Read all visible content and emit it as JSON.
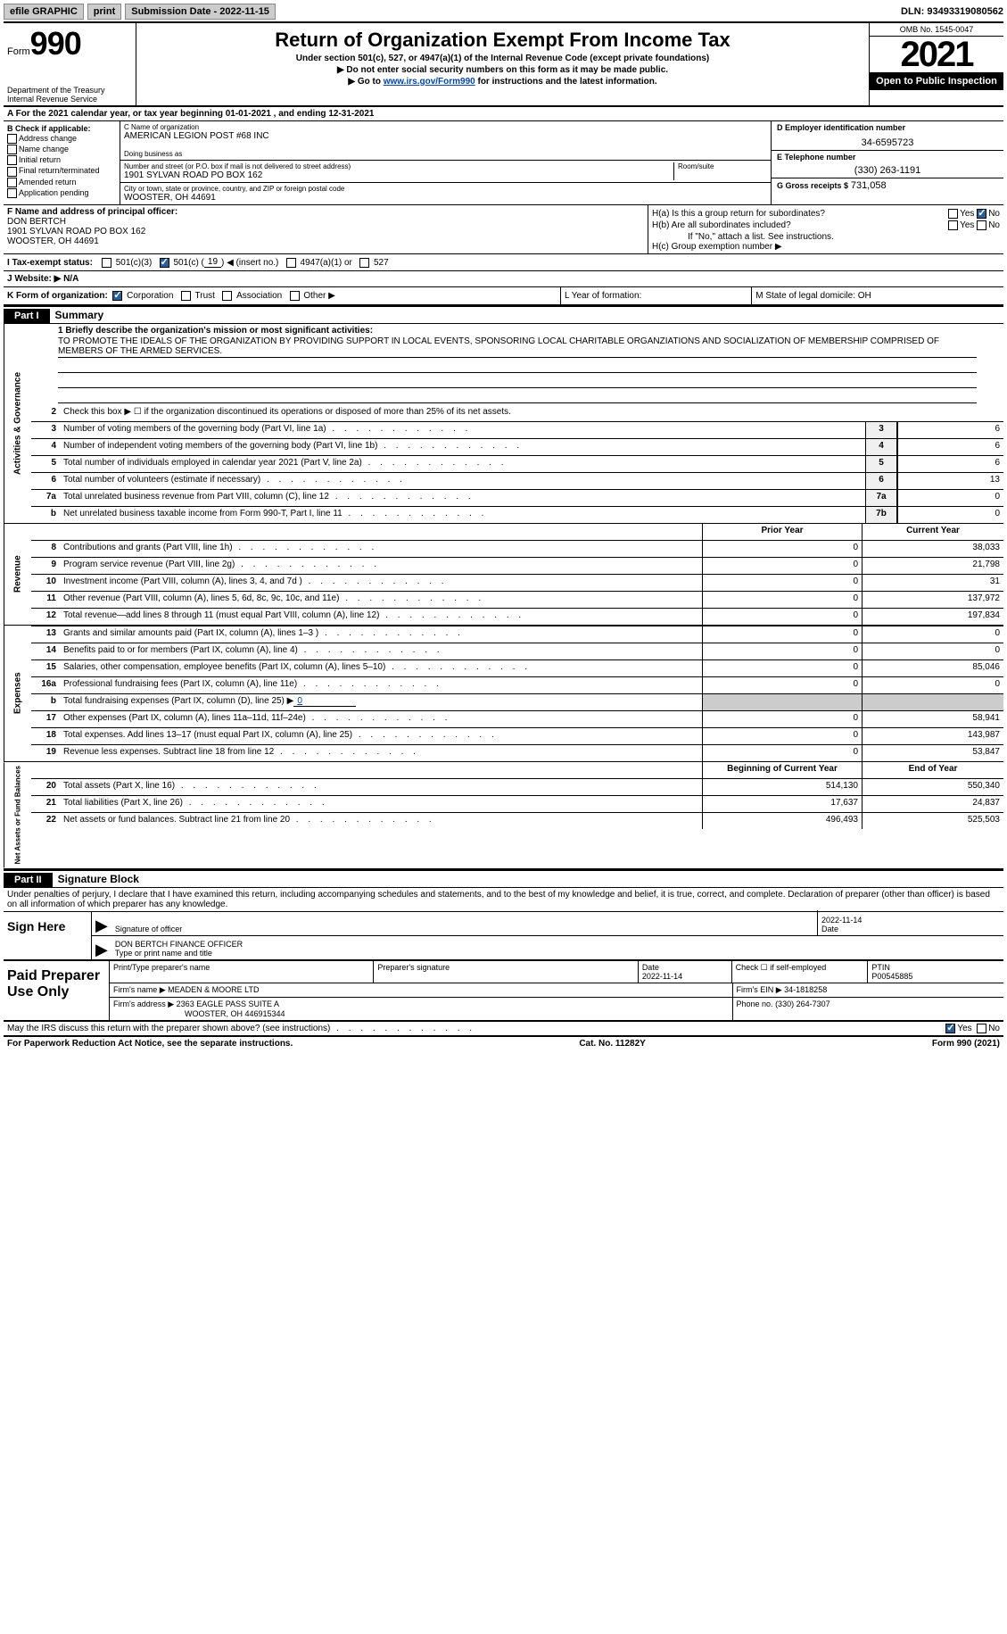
{
  "topbar": {
    "efile": "efile GRAPHIC",
    "print": "print",
    "submission": "Submission Date - 2022-11-15",
    "dln": "DLN: 93493319080562"
  },
  "header": {
    "form_word": "Form",
    "form_num": "990",
    "dept": "Department of the Treasury Internal Revenue Service",
    "title": "Return of Organization Exempt From Income Tax",
    "sub1": "Under section 501(c), 527, or 4947(a)(1) of the Internal Revenue Code (except private foundations)",
    "sub2": "▶ Do not enter social security numbers on this form as it may be made public.",
    "sub3_pre": "▶ Go to ",
    "sub3_link": "www.irs.gov/Form990",
    "sub3_post": " for instructions and the latest information.",
    "omb": "OMB No. 1545-0047",
    "year": "2021",
    "open": "Open to Public Inspection"
  },
  "rowA": "A   For the 2021 calendar year, or tax year beginning 01-01-2021    , and ending 12-31-2021",
  "colB": {
    "hdr": "B Check if applicable:",
    "items": [
      "Address change",
      "Name change",
      "Initial return",
      "Final return/terminated",
      "Amended return",
      "Application pending"
    ]
  },
  "colC": {
    "name_lbl": "C Name of organization",
    "name": "AMERICAN LEGION POST #68 INC",
    "dba_lbl": "Doing business as",
    "dba": "",
    "addr_lbl": "Number and street (or P.O. box if mail is not delivered to street address)",
    "room_lbl": "Room/suite",
    "addr": "1901 SYLVAN ROAD PO BOX 162",
    "city_lbl": "City or town, state or province, country, and ZIP or foreign postal code",
    "city": "WOOSTER, OH  44691"
  },
  "colD": {
    "ein_lbl": "D Employer identification number",
    "ein": "34-6595723",
    "tel_lbl": "E Telephone number",
    "tel": "(330) 263-1191",
    "gross_lbl": "G Gross receipts $",
    "gross": "731,058"
  },
  "colF": {
    "lbl": "F  Name and address of principal officer:",
    "name": "DON BERTCH",
    "addr1": "1901 SYLVAN ROAD PO BOX 162",
    "addr2": "WOOSTER, OH  44691"
  },
  "colH": {
    "a": "H(a)  Is this a group return for subordinates?",
    "b": "H(b)  Are all subordinates included?",
    "note": "If \"No,\" attach a list. See instructions.",
    "c": "H(c)  Group exemption number ▶"
  },
  "rowI": {
    "lbl": "I    Tax-exempt status:",
    "o1": "501(c)(3)",
    "o2a": "501(c) (",
    "o2b": "19",
    "o2c": ") ◀ (insert no.)",
    "o3": "4947(a)(1) or",
    "o4": "527"
  },
  "rowJ": "J    Website: ▶   N/A",
  "rowK": {
    "lbl": "K Form of organization:",
    "o1": "Corporation",
    "o2": "Trust",
    "o3": "Association",
    "o4": "Other ▶"
  },
  "rowL": {
    "year": "L Year of formation:",
    "state": "M State of legal domicile: OH"
  },
  "part1": {
    "tag": "Part I",
    "title": "Summary"
  },
  "q1": {
    "lbl": "1   Briefly describe the organization's mission or most significant activities:",
    "txt": "TO PROMOTE THE IDEALS OF THE ORGANIZATION BY PROVIDING SUPPORT IN LOCAL EVENTS, SPONSORING LOCAL CHARITABLE ORGANZIATIONS AND SOCIALIZATION OF MEMBERSHIP COMPRISED OF MEMBERS OF THE ARMED SERVICES."
  },
  "q2": "Check this box ▶ ☐  if the organization discontinued its operations or disposed of more than 25% of its net assets.",
  "lines_gov": [
    {
      "n": "3",
      "d": "Number of voting members of the governing body (Part VI, line 1a)",
      "b": "3",
      "v": "6"
    },
    {
      "n": "4",
      "d": "Number of independent voting members of the governing body (Part VI, line 1b)",
      "b": "4",
      "v": "6"
    },
    {
      "n": "5",
      "d": "Total number of individuals employed in calendar year 2021 (Part V, line 2a)",
      "b": "5",
      "v": "6"
    },
    {
      "n": "6",
      "d": "Total number of volunteers (estimate if necessary)",
      "b": "6",
      "v": "13"
    },
    {
      "n": "7a",
      "d": "Total unrelated business revenue from Part VIII, column (C), line 12",
      "b": "7a",
      "v": "0"
    },
    {
      "n": "b",
      "d": "Net unrelated business taxable income from Form 990-T, Part I, line 11",
      "b": "7b",
      "v": "0"
    }
  ],
  "hdr_pc": {
    "prior": "Prior Year",
    "curr": "Current Year"
  },
  "lines_rev": [
    {
      "n": "8",
      "d": "Contributions and grants (Part VIII, line 1h)",
      "p": "0",
      "c": "38,033"
    },
    {
      "n": "9",
      "d": "Program service revenue (Part VIII, line 2g)",
      "p": "0",
      "c": "21,798"
    },
    {
      "n": "10",
      "d": "Investment income (Part VIII, column (A), lines 3, 4, and 7d )",
      "p": "0",
      "c": "31"
    },
    {
      "n": "11",
      "d": "Other revenue (Part VIII, column (A), lines 5, 6d, 8c, 9c, 10c, and 11e)",
      "p": "0",
      "c": "137,972"
    },
    {
      "n": "12",
      "d": "Total revenue—add lines 8 through 11 (must equal Part VIII, column (A), line 12)",
      "p": "0",
      "c": "197,834"
    }
  ],
  "lines_exp": [
    {
      "n": "13",
      "d": "Grants and similar amounts paid (Part IX, column (A), lines 1–3 )",
      "p": "0",
      "c": "0"
    },
    {
      "n": "14",
      "d": "Benefits paid to or for members (Part IX, column (A), line 4)",
      "p": "0",
      "c": "0"
    },
    {
      "n": "15",
      "d": "Salaries, other compensation, employee benefits (Part IX, column (A), lines 5–10)",
      "p": "0",
      "c": "85,046"
    },
    {
      "n": "16a",
      "d": "Professional fundraising fees (Part IX, column (A), line 11e)",
      "p": "0",
      "c": "0"
    }
  ],
  "line16b": {
    "n": "b",
    "d": "Total fundraising expenses (Part IX, column (D), line 25) ▶",
    "v": "0"
  },
  "lines_exp2": [
    {
      "n": "17",
      "d": "Other expenses (Part IX, column (A), lines 11a–11d, 11f–24e)",
      "p": "0",
      "c": "58,941"
    },
    {
      "n": "18",
      "d": "Total expenses. Add lines 13–17 (must equal Part IX, column (A), line 25)",
      "p": "0",
      "c": "143,987"
    },
    {
      "n": "19",
      "d": "Revenue less expenses. Subtract line 18 from line 12",
      "p": "0",
      "c": "53,847"
    }
  ],
  "hdr_na": {
    "prior": "Beginning of Current Year",
    "curr": "End of Year"
  },
  "lines_na": [
    {
      "n": "20",
      "d": "Total assets (Part X, line 16)",
      "p": "514,130",
      "c": "550,340"
    },
    {
      "n": "21",
      "d": "Total liabilities (Part X, line 26)",
      "p": "17,637",
      "c": "24,837"
    },
    {
      "n": "22",
      "d": "Net assets or fund balances. Subtract line 21 from line 20",
      "p": "496,493",
      "c": "525,503"
    }
  ],
  "side": {
    "gov": "Activities & Governance",
    "rev": "Revenue",
    "exp": "Expenses",
    "na": "Net Assets or Fund Balances"
  },
  "part2": {
    "tag": "Part II",
    "title": "Signature Block"
  },
  "penalties": "Under penalties of perjury, I declare that I have examined this return, including accompanying schedules and statements, and to the best of my knowledge and belief, it is true, correct, and complete. Declaration of preparer (other than officer) is based on all information of which preparer has any knowledge.",
  "sign": {
    "here": "Sign Here",
    "sig_lbl": "Signature of officer",
    "date": "2022-11-14",
    "date_lbl": "Date",
    "name": "DON BERTCH  FINANCE OFFICER",
    "name_lbl": "Type or print name and title"
  },
  "prep": {
    "left": "Paid Preparer Use Only",
    "r1": {
      "a": "Print/Type preparer's name",
      "b": "Preparer's signature",
      "c": "Date",
      "cv": "2022-11-14",
      "d": "Check ☐ if self-employed",
      "e": "PTIN",
      "ev": "P00545885"
    },
    "r2": {
      "a": "Firm's name     ▶",
      "av": "MEADEN & MOORE LTD",
      "b": "Firm's EIN ▶",
      "bv": "34-1818258"
    },
    "r3": {
      "a": "Firm's address ▶",
      "av1": "2363 EAGLE PASS SUITE A",
      "av2": "WOOSTER, OH  446915344",
      "b": "Phone no.",
      "bv": "(330) 264-7307"
    }
  },
  "discuss": "May the IRS discuss this return with the preparer shown above? (see instructions)",
  "footer": {
    "left": "For Paperwork Reduction Act Notice, see the separate instructions.",
    "mid": "Cat. No. 11282Y",
    "right": "Form 990 (2021)"
  },
  "yn": {
    "yes": "Yes",
    "no": "No"
  }
}
